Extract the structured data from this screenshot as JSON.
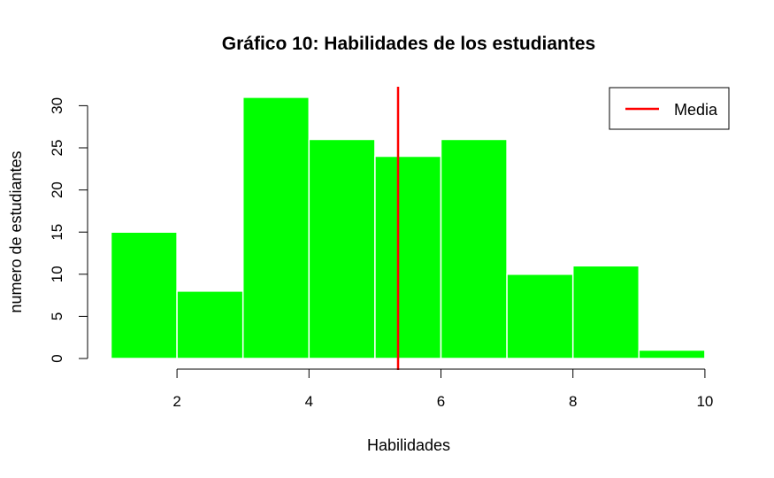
{
  "chart_data": {
    "type": "bar",
    "title": "Gráfico 10: Habilidades de los estudiantes",
    "xlabel": "Habilidades",
    "ylabel": "numero de estudiantes",
    "bins": [
      [
        1,
        2
      ],
      [
        2,
        3
      ],
      [
        3,
        4
      ],
      [
        4,
        5
      ],
      [
        5,
        6
      ],
      [
        6,
        7
      ],
      [
        7,
        8
      ],
      [
        8,
        9
      ],
      [
        9,
        10
      ]
    ],
    "values": [
      15,
      8,
      31,
      26,
      24,
      26,
      10,
      11,
      1
    ],
    "mean": 5.35,
    "xlim": [
      1,
      10
    ],
    "ylim": [
      0,
      32
    ],
    "x_ticks": [
      2,
      4,
      6,
      8,
      10
    ],
    "y_ticks": [
      0,
      5,
      10,
      15,
      20,
      25,
      30
    ],
    "bar_color": "#00ff00",
    "bar_border": "#ffffff",
    "mean_line_color": "#ff0000",
    "legend": {
      "position": "top-right",
      "entries": [
        {
          "label": "Media",
          "color": "#ff0000"
        }
      ]
    },
    "grid": false
  }
}
